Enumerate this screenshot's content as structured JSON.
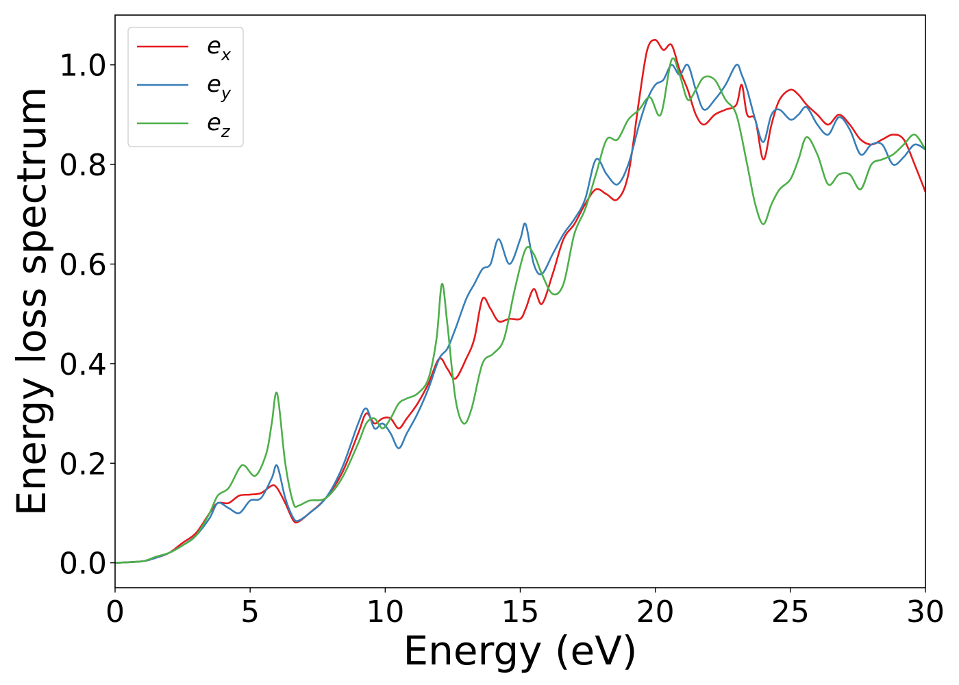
{
  "chart_data": {
    "type": "line",
    "xlabel": "Energy (eV)",
    "ylabel": "Energy loss spectrum",
    "xlim": [
      0,
      30
    ],
    "ylim": [
      -0.05,
      1.1
    ],
    "xticks": [
      0,
      5,
      10,
      15,
      20,
      25,
      30
    ],
    "xtick_labels": [
      "0",
      "5",
      "10",
      "15",
      "20",
      "25",
      "30"
    ],
    "yticks": [
      0.0,
      0.2,
      0.4,
      0.6,
      0.8,
      1.0
    ],
    "ytick_labels": [
      "0.0",
      "0.2",
      "0.4",
      "0.6",
      "0.8",
      "1.0"
    ],
    "grid": false,
    "legend_position": "top-left",
    "series": [
      {
        "name": "e_x",
        "base": "e",
        "sub": "x",
        "color": "#e41a1c",
        "x": [
          0,
          1,
          1.5,
          2,
          2.5,
          3,
          3.5,
          3.8,
          4.2,
          4.6,
          5,
          5.4,
          5.8,
          6,
          6.3,
          6.6,
          6.8,
          7.2,
          7.8,
          8.4,
          9,
          9.3,
          9.6,
          9.9,
          10.2,
          10.5,
          10.8,
          11.2,
          11.6,
          12,
          12.3,
          12.6,
          13,
          13.3,
          13.6,
          13.9,
          14.2,
          14.6,
          15,
          15.2,
          15.5,
          15.8,
          16.2,
          16.6,
          17,
          17.4,
          17.8,
          18.2,
          18.6,
          19,
          19.4,
          19.7,
          20,
          20.3,
          20.6,
          20.9,
          21.2,
          21.5,
          21.8,
          22.2,
          22.6,
          23,
          23.2,
          23.4,
          23.7,
          24,
          24.3,
          24.6,
          25,
          25.3,
          25.6,
          26,
          26.4,
          26.8,
          27.2,
          27.6,
          28,
          28.4,
          28.8,
          29.2,
          29.6,
          30
        ],
        "y": [
          0.0,
          0.003,
          0.01,
          0.02,
          0.04,
          0.06,
          0.1,
          0.12,
          0.12,
          0.135,
          0.137,
          0.14,
          0.155,
          0.15,
          0.12,
          0.085,
          0.083,
          0.1,
          0.13,
          0.18,
          0.26,
          0.3,
          0.28,
          0.29,
          0.29,
          0.27,
          0.29,
          0.32,
          0.36,
          0.41,
          0.39,
          0.37,
          0.41,
          0.45,
          0.53,
          0.51,
          0.485,
          0.49,
          0.49,
          0.51,
          0.55,
          0.52,
          0.58,
          0.65,
          0.68,
          0.72,
          0.75,
          0.74,
          0.73,
          0.78,
          0.93,
          1.03,
          1.05,
          1.03,
          1.04,
          0.99,
          0.95,
          0.9,
          0.88,
          0.9,
          0.91,
          0.92,
          0.96,
          0.9,
          0.89,
          0.81,
          0.88,
          0.93,
          0.95,
          0.94,
          0.92,
          0.9,
          0.88,
          0.9,
          0.88,
          0.85,
          0.84,
          0.85,
          0.86,
          0.85,
          0.8,
          0.745
        ]
      },
      {
        "name": "e_y",
        "base": "e",
        "sub": "y",
        "color": "#377eb8",
        "x": [
          0,
          1,
          1.5,
          2,
          2.5,
          3,
          3.5,
          3.8,
          4.2,
          4.6,
          5,
          5.4,
          5.8,
          6,
          6.3,
          6.6,
          6.8,
          7.2,
          7.8,
          8.4,
          9,
          9.3,
          9.6,
          9.9,
          10.2,
          10.5,
          10.8,
          11.2,
          11.6,
          12,
          12.3,
          12.6,
          13,
          13.3,
          13.6,
          13.9,
          14.2,
          14.6,
          15,
          15.2,
          15.5,
          15.8,
          16.2,
          16.6,
          17,
          17.4,
          17.8,
          18.2,
          18.6,
          19,
          19.4,
          19.7,
          20,
          20.3,
          20.6,
          20.9,
          21.2,
          21.5,
          21.8,
          22.2,
          22.6,
          23,
          23.2,
          23.4,
          23.7,
          24,
          24.3,
          24.6,
          25,
          25.3,
          25.6,
          26,
          26.4,
          26.8,
          27.2,
          27.6,
          28,
          28.4,
          28.8,
          29.2,
          29.6,
          30
        ],
        "y": [
          0.0,
          0.003,
          0.01,
          0.02,
          0.035,
          0.055,
          0.09,
          0.12,
          0.11,
          0.1,
          0.125,
          0.13,
          0.17,
          0.195,
          0.13,
          0.09,
          0.085,
          0.1,
          0.13,
          0.19,
          0.28,
          0.31,
          0.27,
          0.28,
          0.26,
          0.23,
          0.26,
          0.3,
          0.35,
          0.41,
          0.43,
          0.47,
          0.53,
          0.56,
          0.59,
          0.6,
          0.65,
          0.6,
          0.65,
          0.68,
          0.6,
          0.58,
          0.62,
          0.66,
          0.69,
          0.73,
          0.81,
          0.78,
          0.76,
          0.8,
          0.88,
          0.93,
          0.96,
          0.97,
          1.0,
          0.98,
          1.0,
          0.95,
          0.91,
          0.93,
          0.96,
          1.0,
          0.98,
          0.95,
          0.89,
          0.845,
          0.9,
          0.91,
          0.89,
          0.9,
          0.915,
          0.88,
          0.86,
          0.895,
          0.87,
          0.82,
          0.84,
          0.84,
          0.8,
          0.815,
          0.84,
          0.83
        ]
      },
      {
        "name": "e_z",
        "base": "e",
        "sub": "z",
        "color": "#4daf4a",
        "x": [
          0,
          1,
          1.5,
          2,
          2.5,
          3,
          3.5,
          3.8,
          4.2,
          4.6,
          4.8,
          5.2,
          5.6,
          5.8,
          6,
          6.3,
          6.6,
          6.8,
          7.2,
          7.8,
          8.4,
          9,
          9.3,
          9.6,
          9.9,
          10.2,
          10.5,
          10.8,
          11.2,
          11.6,
          11.9,
          12.1,
          12.3,
          12.6,
          12.9,
          13.2,
          13.6,
          14,
          14.4,
          14.8,
          15.2,
          15.5,
          15.8,
          16.2,
          16.6,
          17,
          17.4,
          17.8,
          18.2,
          18.6,
          19,
          19.4,
          19.8,
          20.2,
          20.6,
          20.9,
          21.2,
          21.5,
          21.8,
          22.2,
          22.6,
          23,
          23.4,
          23.7,
          24,
          24.3,
          24.6,
          25,
          25.3,
          25.6,
          26,
          26.4,
          26.8,
          27.2,
          27.6,
          28,
          28.4,
          28.8,
          29.2,
          29.6,
          30
        ],
        "y": [
          0.0,
          0.003,
          0.012,
          0.02,
          0.035,
          0.055,
          0.1,
          0.135,
          0.15,
          0.19,
          0.195,
          0.175,
          0.22,
          0.28,
          0.34,
          0.2,
          0.12,
          0.115,
          0.125,
          0.13,
          0.17,
          0.24,
          0.28,
          0.29,
          0.27,
          0.29,
          0.32,
          0.33,
          0.34,
          0.37,
          0.45,
          0.56,
          0.48,
          0.33,
          0.28,
          0.31,
          0.4,
          0.42,
          0.45,
          0.55,
          0.63,
          0.62,
          0.58,
          0.54,
          0.56,
          0.66,
          0.71,
          0.78,
          0.85,
          0.85,
          0.89,
          0.91,
          0.935,
          0.9,
          1.01,
          0.98,
          0.93,
          0.95,
          0.975,
          0.97,
          0.93,
          0.9,
          0.8,
          0.72,
          0.68,
          0.72,
          0.75,
          0.77,
          0.81,
          0.855,
          0.82,
          0.76,
          0.78,
          0.78,
          0.75,
          0.8,
          0.81,
          0.82,
          0.84,
          0.86,
          0.83
        ]
      }
    ]
  }
}
